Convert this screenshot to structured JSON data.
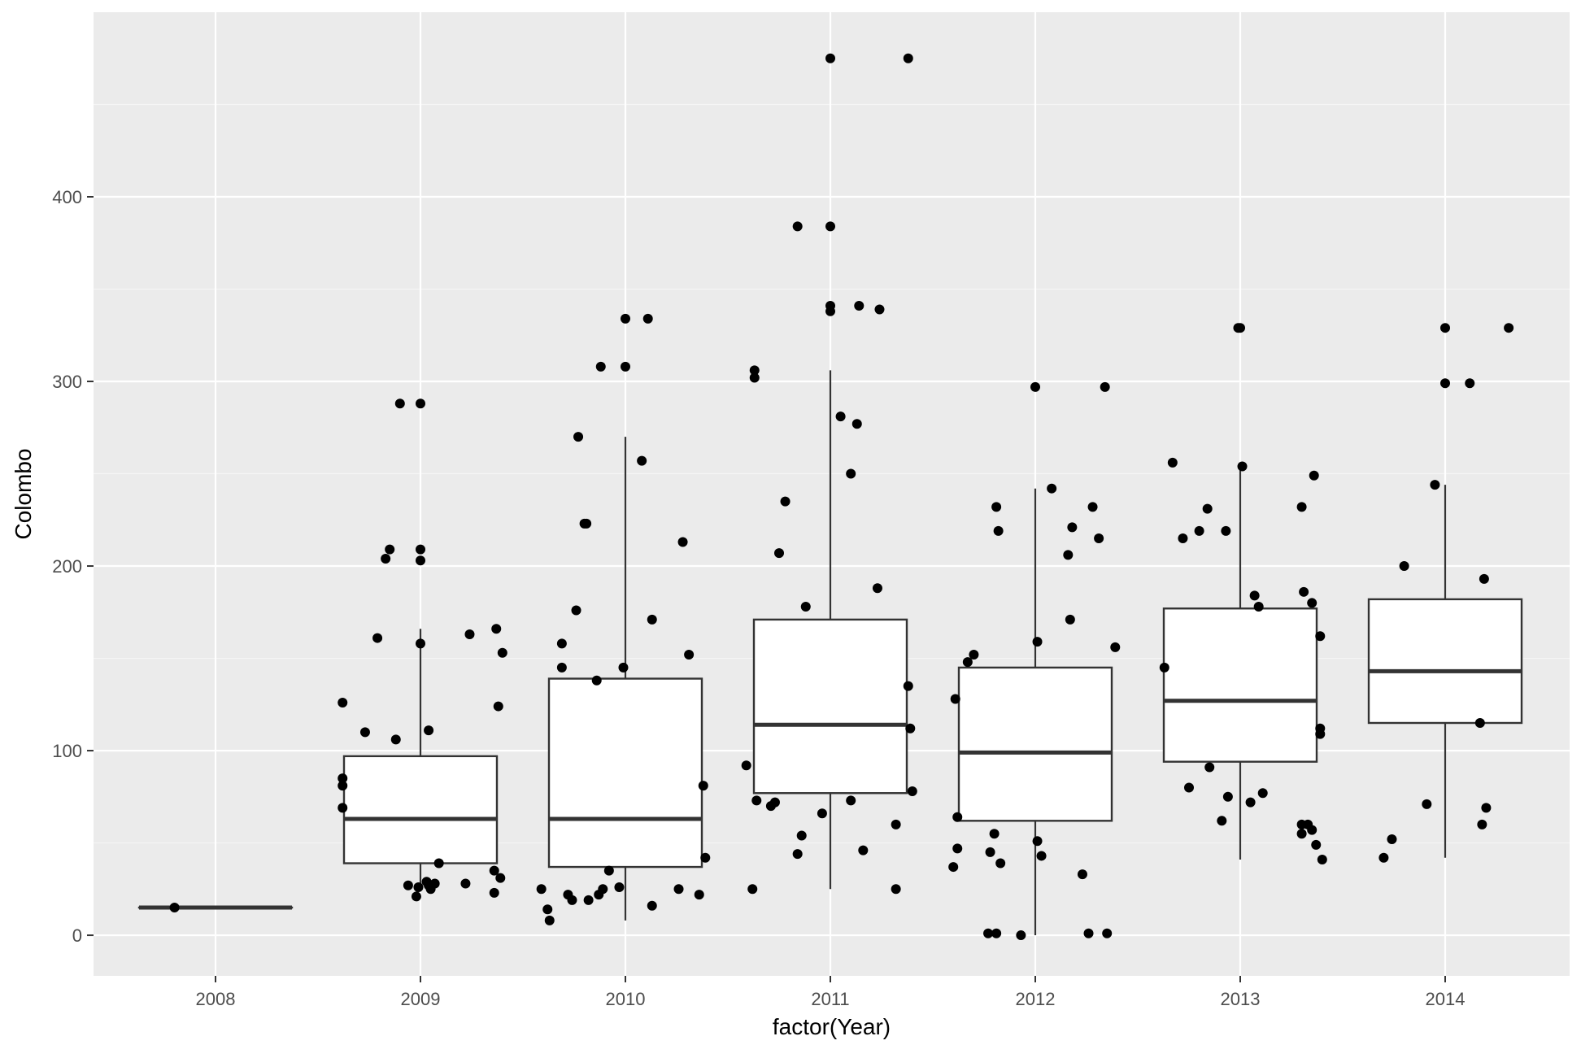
{
  "colors": {
    "panel_background": "#ebebeb",
    "grid_major": "#ffffff",
    "grid_minor": "#f5f5f5",
    "box_fill": "#ffffff",
    "box_stroke": "#333333",
    "point": "#000000",
    "tick_label": "#4d4d4d",
    "axis_title": "#000000"
  },
  "chart_data": {
    "type": "boxplot",
    "title": "",
    "xlabel": "factor(Year)",
    "ylabel": "Colombo",
    "categories": [
      "2008",
      "2009",
      "2010",
      "2011",
      "2012",
      "2013",
      "2014"
    ],
    "ylim": [
      -22,
      500
    ],
    "yticks": [
      0,
      100,
      200,
      300,
      400
    ],
    "grid": true,
    "legend": "none",
    "boxes": [
      {
        "category": "2008",
        "min": 15,
        "q1": 15,
        "median": 15,
        "q3": 15,
        "max": 15
      },
      {
        "category": "2009",
        "min": 27,
        "q1": 39,
        "median": 63,
        "q3": 97,
        "max": 166
      },
      {
        "category": "2010",
        "min": 8,
        "q1": 37,
        "median": 63,
        "q3": 139,
        "max": 270
      },
      {
        "category": "2011",
        "min": 25,
        "q1": 77,
        "median": 114,
        "q3": 171,
        "max": 306
      },
      {
        "category": "2012",
        "min": 0,
        "q1": 62,
        "median": 99,
        "q3": 145,
        "max": 242
      },
      {
        "category": "2013",
        "min": 41,
        "q1": 94,
        "median": 127,
        "q3": 177,
        "max": 254
      },
      {
        "category": "2014",
        "min": 42,
        "q1": 115,
        "median": 143,
        "q3": 182,
        "max": 244
      }
    ],
    "points": [
      {
        "x": 2007.8,
        "y": 15
      },
      {
        "x": 2008.62,
        "y": 126
      },
      {
        "x": 2008.62,
        "y": 85
      },
      {
        "x": 2008.62,
        "y": 81
      },
      {
        "x": 2008.62,
        "y": 69
      },
      {
        "x": 2008.73,
        "y": 110
      },
      {
        "x": 2008.79,
        "y": 161
      },
      {
        "x": 2008.83,
        "y": 204
      },
      {
        "x": 2008.85,
        "y": 209
      },
      {
        "x": 2008.88,
        "y": 106
      },
      {
        "x": 2008.9,
        "y": 288
      },
      {
        "x": 2008.94,
        "y": 27
      },
      {
        "x": 2008.98,
        "y": 21
      },
      {
        "x": 2008.99,
        "y": 26
      },
      {
        "x": 2009.0,
        "y": 288
      },
      {
        "x": 2009.0,
        "y": 209
      },
      {
        "x": 2009.0,
        "y": 203
      },
      {
        "x": 2009.0,
        "y": 158
      },
      {
        "x": 2009.03,
        "y": 29
      },
      {
        "x": 2009.04,
        "y": 27
      },
      {
        "x": 2009.04,
        "y": 111
      },
      {
        "x": 2009.05,
        "y": 25
      },
      {
        "x": 2009.07,
        "y": 28
      },
      {
        "x": 2009.09,
        "y": 39
      },
      {
        "x": 2009.22,
        "y": 28
      },
      {
        "x": 2009.24,
        "y": 163
      },
      {
        "x": 2009.36,
        "y": 23
      },
      {
        "x": 2009.36,
        "y": 35
      },
      {
        "x": 2009.37,
        "y": 166
      },
      {
        "x": 2009.38,
        "y": 124
      },
      {
        "x": 2009.39,
        "y": 31
      },
      {
        "x": 2009.4,
        "y": 153
      },
      {
        "x": 2009.59,
        "y": 25
      },
      {
        "x": 2009.62,
        "y": 14
      },
      {
        "x": 2009.63,
        "y": 8
      },
      {
        "x": 2009.69,
        "y": 158
      },
      {
        "x": 2009.69,
        "y": 145
      },
      {
        "x": 2009.72,
        "y": 22
      },
      {
        "x": 2009.74,
        "y": 19
      },
      {
        "x": 2009.76,
        "y": 176
      },
      {
        "x": 2009.77,
        "y": 270
      },
      {
        "x": 2009.8,
        "y": 223
      },
      {
        "x": 2009.81,
        "y": 223
      },
      {
        "x": 2009.82,
        "y": 19
      },
      {
        "x": 2009.86,
        "y": 138
      },
      {
        "x": 2009.87,
        "y": 22
      },
      {
        "x": 2009.88,
        "y": 308
      },
      {
        "x": 2009.89,
        "y": 25
      },
      {
        "x": 2009.92,
        "y": 35
      },
      {
        "x": 2009.97,
        "y": 26
      },
      {
        "x": 2009.99,
        "y": 145
      },
      {
        "x": 2010.0,
        "y": 334
      },
      {
        "x": 2010.0,
        "y": 308
      },
      {
        "x": 2010.08,
        "y": 257
      },
      {
        "x": 2010.11,
        "y": 334
      },
      {
        "x": 2010.13,
        "y": 16
      },
      {
        "x": 2010.13,
        "y": 171
      },
      {
        "x": 2010.26,
        "y": 25
      },
      {
        "x": 2010.28,
        "y": 213
      },
      {
        "x": 2010.31,
        "y": 152
      },
      {
        "x": 2010.36,
        "y": 22
      },
      {
        "x": 2010.38,
        "y": 81
      },
      {
        "x": 2010.39,
        "y": 42
      },
      {
        "x": 2010.59,
        "y": 92
      },
      {
        "x": 2010.62,
        "y": 25
      },
      {
        "x": 2010.63,
        "y": 306
      },
      {
        "x": 2010.63,
        "y": 302
      },
      {
        "x": 2010.64,
        "y": 73
      },
      {
        "x": 2010.71,
        "y": 70
      },
      {
        "x": 2010.73,
        "y": 72
      },
      {
        "x": 2010.75,
        "y": 207
      },
      {
        "x": 2010.78,
        "y": 235
      },
      {
        "x": 2010.84,
        "y": 384
      },
      {
        "x": 2010.84,
        "y": 44
      },
      {
        "x": 2010.86,
        "y": 54
      },
      {
        "x": 2010.88,
        "y": 178
      },
      {
        "x": 2010.96,
        "y": 66
      },
      {
        "x": 2011.0,
        "y": 475
      },
      {
        "x": 2011.0,
        "y": 384
      },
      {
        "x": 2011.0,
        "y": 341
      },
      {
        "x": 2011.0,
        "y": 338
      },
      {
        "x": 2011.05,
        "y": 281
      },
      {
        "x": 2011.1,
        "y": 250
      },
      {
        "x": 2011.1,
        "y": 73
      },
      {
        "x": 2011.13,
        "y": 277
      },
      {
        "x": 2011.14,
        "y": 341
      },
      {
        "x": 2011.16,
        "y": 46
      },
      {
        "x": 2011.23,
        "y": 188
      },
      {
        "x": 2011.24,
        "y": 339
      },
      {
        "x": 2011.32,
        "y": 25
      },
      {
        "x": 2011.32,
        "y": 60
      },
      {
        "x": 2011.38,
        "y": 475
      },
      {
        "x": 2011.38,
        "y": 135
      },
      {
        "x": 2011.39,
        "y": 112
      },
      {
        "x": 2011.4,
        "y": 78
      },
      {
        "x": 2011.6,
        "y": 37
      },
      {
        "x": 2011.61,
        "y": 128
      },
      {
        "x": 2011.62,
        "y": 47
      },
      {
        "x": 2011.62,
        "y": 64
      },
      {
        "x": 2011.67,
        "y": 148
      },
      {
        "x": 2011.7,
        "y": 152
      },
      {
        "x": 2011.77,
        "y": 1
      },
      {
        "x": 2011.78,
        "y": 45
      },
      {
        "x": 2011.8,
        "y": 55
      },
      {
        "x": 2011.81,
        "y": 1
      },
      {
        "x": 2011.81,
        "y": 232
      },
      {
        "x": 2011.82,
        "y": 219
      },
      {
        "x": 2011.83,
        "y": 39
      },
      {
        "x": 2011.93,
        "y": 0
      },
      {
        "x": 2012.0,
        "y": 297
      },
      {
        "x": 2012.01,
        "y": 51
      },
      {
        "x": 2012.01,
        "y": 159
      },
      {
        "x": 2012.03,
        "y": 43
      },
      {
        "x": 2012.08,
        "y": 242
      },
      {
        "x": 2012.16,
        "y": 206
      },
      {
        "x": 2012.17,
        "y": 171
      },
      {
        "x": 2012.18,
        "y": 221
      },
      {
        "x": 2012.23,
        "y": 33
      },
      {
        "x": 2012.26,
        "y": 1
      },
      {
        "x": 2012.28,
        "y": 232
      },
      {
        "x": 2012.31,
        "y": 215
      },
      {
        "x": 2012.34,
        "y": 297
      },
      {
        "x": 2012.35,
        "y": 1
      },
      {
        "x": 2012.39,
        "y": 156
      },
      {
        "x": 2012.63,
        "y": 145
      },
      {
        "x": 2012.67,
        "y": 256
      },
      {
        "x": 2012.72,
        "y": 215
      },
      {
        "x": 2012.75,
        "y": 80
      },
      {
        "x": 2012.8,
        "y": 219
      },
      {
        "x": 2012.84,
        "y": 231
      },
      {
        "x": 2012.85,
        "y": 91
      },
      {
        "x": 2012.91,
        "y": 62
      },
      {
        "x": 2012.93,
        "y": 219
      },
      {
        "x": 2012.94,
        "y": 75
      },
      {
        "x": 2012.99,
        "y": 329
      },
      {
        "x": 2013.0,
        "y": 329
      },
      {
        "x": 2013.01,
        "y": 254
      },
      {
        "x": 2013.05,
        "y": 72
      },
      {
        "x": 2013.07,
        "y": 184
      },
      {
        "x": 2013.09,
        "y": 178
      },
      {
        "x": 2013.11,
        "y": 77
      },
      {
        "x": 2013.3,
        "y": 232
      },
      {
        "x": 2013.31,
        "y": 186
      },
      {
        "x": 2013.33,
        "y": 60
      },
      {
        "x": 2013.35,
        "y": 57
      },
      {
        "x": 2013.35,
        "y": 180
      },
      {
        "x": 2013.36,
        "y": 249
      },
      {
        "x": 2013.37,
        "y": 49
      },
      {
        "x": 2013.39,
        "y": 162
      },
      {
        "x": 2013.39,
        "y": 112
      },
      {
        "x": 2013.39,
        "y": 109
      },
      {
        "x": 2013.4,
        "y": 41
      },
      {
        "x": 2013.3,
        "y": 60
      },
      {
        "x": 2013.3,
        "y": 55
      },
      {
        "x": 2013.7,
        "y": 42
      },
      {
        "x": 2013.74,
        "y": 52
      },
      {
        "x": 2013.8,
        "y": 200
      },
      {
        "x": 2013.91,
        "y": 71
      },
      {
        "x": 2013.95,
        "y": 244
      },
      {
        "x": 2014.0,
        "y": 329
      },
      {
        "x": 2014.0,
        "y": 299
      },
      {
        "x": 2014.12,
        "y": 299
      },
      {
        "x": 2014.17,
        "y": 115
      },
      {
        "x": 2014.18,
        "y": 60
      },
      {
        "x": 2014.19,
        "y": 193
      },
      {
        "x": 2014.2,
        "y": 69
      },
      {
        "x": 2014.31,
        "y": 329
      }
    ]
  }
}
